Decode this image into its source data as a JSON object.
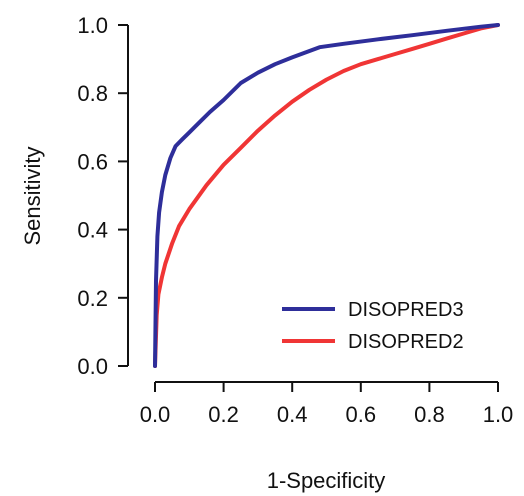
{
  "chart_data": {
    "type": "line",
    "xlabel": "1-Specificity",
    "ylabel": "Sensitivity",
    "xlim": [
      0,
      1
    ],
    "ylim": [
      0,
      1
    ],
    "x_ticks": [
      "0.0",
      "0.2",
      "0.4",
      "0.6",
      "0.8",
      "1.0"
    ],
    "y_ticks": [
      "0.0",
      "0.2",
      "0.4",
      "0.6",
      "0.8",
      "1.0"
    ],
    "grid": false,
    "legend_position": "bottom-right",
    "series": [
      {
        "name": "DISOPRED3",
        "color": "#2e2e9a",
        "x": [
          0.0,
          0.003,
          0.007,
          0.012,
          0.02,
          0.03,
          0.045,
          0.06,
          0.08,
          0.1,
          0.13,
          0.16,
          0.2,
          0.25,
          0.3,
          0.35,
          0.4,
          0.48,
          0.55,
          0.65,
          0.75,
          0.85,
          0.95,
          1.0
        ],
        "y": [
          0.0,
          0.25,
          0.38,
          0.45,
          0.51,
          0.56,
          0.61,
          0.645,
          0.665,
          0.685,
          0.715,
          0.745,
          0.78,
          0.83,
          0.86,
          0.885,
          0.905,
          0.935,
          0.945,
          0.958,
          0.97,
          0.983,
          0.995,
          1.0
        ]
      },
      {
        "name": "DISOPRED2",
        "color": "#f03535",
        "x": [
          0.0,
          0.005,
          0.01,
          0.02,
          0.03,
          0.05,
          0.07,
          0.1,
          0.15,
          0.2,
          0.25,
          0.3,
          0.35,
          0.4,
          0.45,
          0.5,
          0.55,
          0.6,
          0.65,
          0.7,
          0.75,
          0.8,
          0.85,
          0.9,
          0.95,
          1.0
        ],
        "y": [
          0.0,
          0.15,
          0.21,
          0.26,
          0.3,
          0.36,
          0.41,
          0.46,
          0.53,
          0.59,
          0.64,
          0.69,
          0.735,
          0.775,
          0.81,
          0.84,
          0.865,
          0.885,
          0.9,
          0.915,
          0.93,
          0.945,
          0.96,
          0.975,
          0.99,
          1.0
        ]
      }
    ]
  }
}
